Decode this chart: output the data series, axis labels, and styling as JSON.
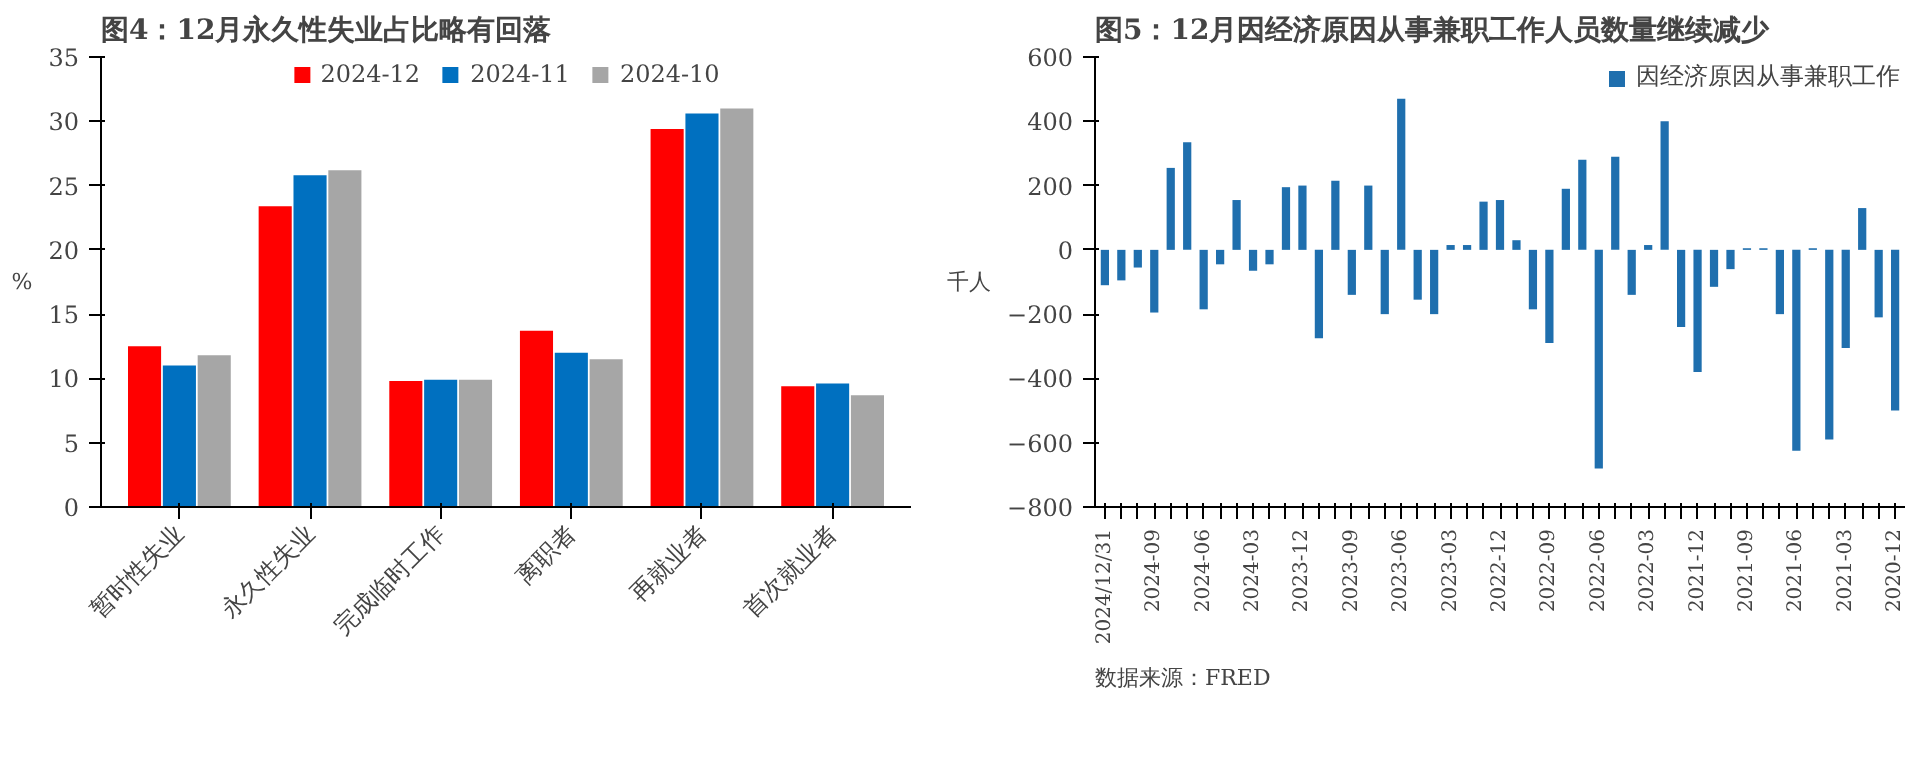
{
  "chart_data": [
    {
      "type": "bar",
      "title": "图4：12月永久性失业占比略有回落",
      "ylabel": "%",
      "categories": [
        "暂时性失业",
        "永久性失业",
        "完成临时工作",
        "离职者",
        "再就业者",
        "首次就业者"
      ],
      "series": [
        {
          "name": "2024-12",
          "color": "#ff0000",
          "values": [
            12.5,
            23.4,
            9.8,
            13.7,
            29.4,
            9.4
          ]
        },
        {
          "name": "2024-11",
          "color": "#0070c0",
          "values": [
            11.0,
            25.8,
            9.9,
            12.0,
            30.6,
            9.6
          ]
        },
        {
          "name": "2024-10",
          "color": "#a6a6a6",
          "values": [
            11.8,
            26.2,
            9.9,
            11.5,
            31.0,
            8.7
          ]
        }
      ],
      "ylim": [
        0,
        35
      ],
      "yticks": [
        0,
        5,
        10,
        15,
        20,
        25,
        30,
        35
      ],
      "grid": false,
      "legend": "top"
    },
    {
      "type": "bar",
      "title": "图5：12月因经济原因从事兼职工作人员数量继续减少",
      "ylabel": "千人",
      "categories": [
        "2024/12/31",
        null,
        null,
        "2024-09",
        null,
        null,
        "2024-06",
        null,
        null,
        "2024-03",
        null,
        null,
        "2023-12",
        null,
        null,
        "2023-09",
        null,
        null,
        "2023-06",
        null,
        null,
        "2023-03",
        null,
        null,
        "2022-12",
        null,
        null,
        "2022-09",
        null,
        null,
        "2022-06",
        null,
        null,
        "2022-03",
        null,
        null,
        "2021-12",
        null,
        null,
        "2021-09",
        null,
        null,
        "2021-06",
        null,
        null,
        "2021-03",
        null,
        null,
        "2020-12"
      ],
      "series": [
        {
          "name": "因经济原因从事兼职工作",
          "color": "#1f6fae",
          "values": [
            -110,
            -95,
            -55,
            -195,
            255,
            335,
            -185,
            -45,
            155,
            -65,
            -45,
            195,
            200,
            -275,
            215,
            -140,
            200,
            -200,
            470,
            -155,
            -200,
            15,
            15,
            150,
            155,
            30,
            -185,
            -290,
            190,
            280,
            -680,
            290,
            -140,
            15,
            400,
            -240,
            -380,
            -115,
            -60,
            5,
            5,
            -200,
            -625,
            5,
            -590,
            -305,
            130,
            -210,
            -500
          ]
        }
      ],
      "ylim": [
        -800,
        600
      ],
      "yticks": [
        -800,
        -600,
        -400,
        -200,
        0,
        200,
        400,
        600
      ],
      "grid": false,
      "legend": "top",
      "annotations": [
        "数据来源：FRED"
      ]
    }
  ]
}
